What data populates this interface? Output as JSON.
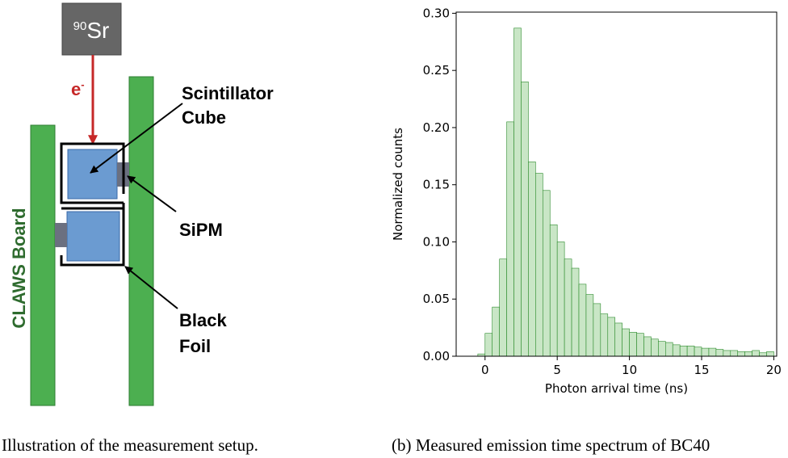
{
  "diagram": {
    "source": {
      "mass": "90",
      "element": "Sr"
    },
    "particle": {
      "symbol": "e",
      "charge": "-"
    },
    "cube_label": [
      "Scintillator",
      "Cube"
    ],
    "sipm_label": "SiPM",
    "foil_label": [
      "Black",
      "Foil"
    ],
    "board_label": "CLAWS Board"
  },
  "captions": [
    "Illustration of the measurement setup.",
    "(b) Measured emission time spectrum of BC40"
  ],
  "chart_data": {
    "type": "histogram",
    "x_label": "Photon arrival time (ns)",
    "y_label": "Normalized counts",
    "bins": [
      -0.5,
      0,
      0.5,
      1,
      1.5,
      2,
      2.5,
      3,
      3.5,
      4,
      4.5,
      5,
      5.5,
      6,
      6.5,
      7,
      7.5,
      8,
      8.5,
      9,
      9.5,
      10,
      10.5,
      11,
      11.5,
      12,
      12.5,
      13,
      13.5,
      14,
      14.5,
      15,
      15.5,
      16,
      16.5,
      17,
      17.5,
      18,
      18.5,
      19,
      19.5,
      20
    ],
    "values": [
      0.002,
      0.02,
      0.043,
      0.085,
      0.205,
      0.287,
      0.24,
      0.17,
      0.16,
      0.145,
      0.115,
      0.1,
      0.085,
      0.077,
      0.063,
      0.054,
      0.046,
      0.037,
      0.034,
      0.029,
      0.024,
      0.021,
      0.02,
      0.017,
      0.015,
      0.013,
      0.012,
      0.01,
      0.009,
      0.009,
      0.008,
      0.007,
      0.007,
      0.006,
      0.005,
      0.005,
      0.004,
      0.004,
      0.005,
      0.003,
      0.004
    ],
    "color": "#2a8a2a",
    "fill": "#c9e6c6",
    "xlim": [
      -2,
      20.2
    ],
    "ylim": [
      0,
      0.301
    ],
    "xticks": [
      0,
      5,
      10,
      15,
      20
    ],
    "yticks": [
      {
        "value": 0,
        "label": "0.00"
      },
      0.05,
      {
        "value": 0.1,
        "label": "0.10"
      },
      0.15,
      {
        "value": 0.2,
        "label": "0.20"
      },
      0.25,
      {
        "value": 0.3,
        "label": "0.30"
      }
    ]
  }
}
